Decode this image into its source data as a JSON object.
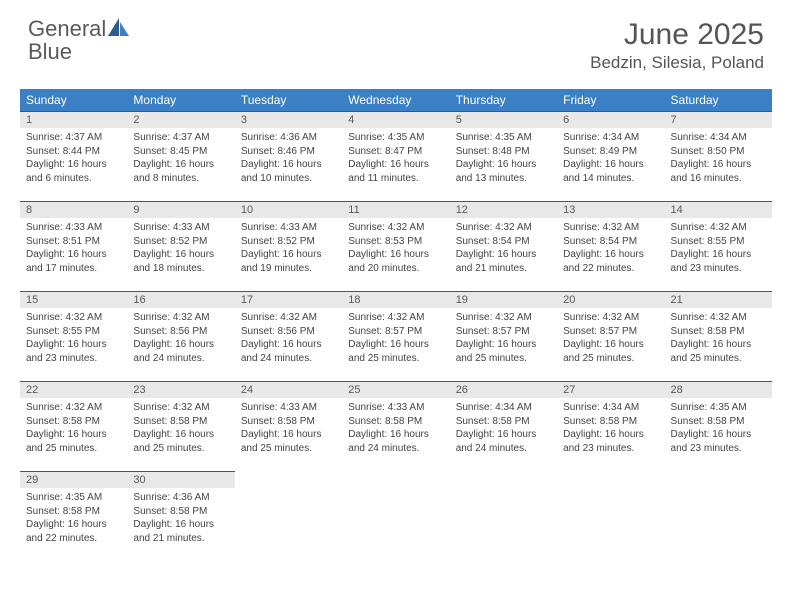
{
  "logo": {
    "text1": "General",
    "text2": "Blue"
  },
  "title": "June 2025",
  "location": "Bedzin, Silesia, Poland",
  "colors": {
    "header_bg": "#3b7fc4",
    "header_text": "#ffffff",
    "daynum_bg": "#e8e8e8",
    "daynum_text": "#5a5a5a",
    "row_border": "#2e5c8a",
    "body_text": "#444444",
    "title_text": "#555555",
    "logo_gray": "#5a5a5a",
    "logo_blue": "#3b7fc4"
  },
  "weekdays": [
    "Sunday",
    "Monday",
    "Tuesday",
    "Wednesday",
    "Thursday",
    "Friday",
    "Saturday"
  ],
  "first_weekday_index": 0,
  "days": [
    {
      "n": 1,
      "sunrise": "4:37 AM",
      "sunset": "8:44 PM",
      "daylight": "16 hours and 6 minutes."
    },
    {
      "n": 2,
      "sunrise": "4:37 AM",
      "sunset": "8:45 PM",
      "daylight": "16 hours and 8 minutes."
    },
    {
      "n": 3,
      "sunrise": "4:36 AM",
      "sunset": "8:46 PM",
      "daylight": "16 hours and 10 minutes."
    },
    {
      "n": 4,
      "sunrise": "4:35 AM",
      "sunset": "8:47 PM",
      "daylight": "16 hours and 11 minutes."
    },
    {
      "n": 5,
      "sunrise": "4:35 AM",
      "sunset": "8:48 PM",
      "daylight": "16 hours and 13 minutes."
    },
    {
      "n": 6,
      "sunrise": "4:34 AM",
      "sunset": "8:49 PM",
      "daylight": "16 hours and 14 minutes."
    },
    {
      "n": 7,
      "sunrise": "4:34 AM",
      "sunset": "8:50 PM",
      "daylight": "16 hours and 16 minutes."
    },
    {
      "n": 8,
      "sunrise": "4:33 AM",
      "sunset": "8:51 PM",
      "daylight": "16 hours and 17 minutes."
    },
    {
      "n": 9,
      "sunrise": "4:33 AM",
      "sunset": "8:52 PM",
      "daylight": "16 hours and 18 minutes."
    },
    {
      "n": 10,
      "sunrise": "4:33 AM",
      "sunset": "8:52 PM",
      "daylight": "16 hours and 19 minutes."
    },
    {
      "n": 11,
      "sunrise": "4:32 AM",
      "sunset": "8:53 PM",
      "daylight": "16 hours and 20 minutes."
    },
    {
      "n": 12,
      "sunrise": "4:32 AM",
      "sunset": "8:54 PM",
      "daylight": "16 hours and 21 minutes."
    },
    {
      "n": 13,
      "sunrise": "4:32 AM",
      "sunset": "8:54 PM",
      "daylight": "16 hours and 22 minutes."
    },
    {
      "n": 14,
      "sunrise": "4:32 AM",
      "sunset": "8:55 PM",
      "daylight": "16 hours and 23 minutes."
    },
    {
      "n": 15,
      "sunrise": "4:32 AM",
      "sunset": "8:55 PM",
      "daylight": "16 hours and 23 minutes."
    },
    {
      "n": 16,
      "sunrise": "4:32 AM",
      "sunset": "8:56 PM",
      "daylight": "16 hours and 24 minutes."
    },
    {
      "n": 17,
      "sunrise": "4:32 AM",
      "sunset": "8:56 PM",
      "daylight": "16 hours and 24 minutes."
    },
    {
      "n": 18,
      "sunrise": "4:32 AM",
      "sunset": "8:57 PM",
      "daylight": "16 hours and 25 minutes."
    },
    {
      "n": 19,
      "sunrise": "4:32 AM",
      "sunset": "8:57 PM",
      "daylight": "16 hours and 25 minutes."
    },
    {
      "n": 20,
      "sunrise": "4:32 AM",
      "sunset": "8:57 PM",
      "daylight": "16 hours and 25 minutes."
    },
    {
      "n": 21,
      "sunrise": "4:32 AM",
      "sunset": "8:58 PM",
      "daylight": "16 hours and 25 minutes."
    },
    {
      "n": 22,
      "sunrise": "4:32 AM",
      "sunset": "8:58 PM",
      "daylight": "16 hours and 25 minutes."
    },
    {
      "n": 23,
      "sunrise": "4:32 AM",
      "sunset": "8:58 PM",
      "daylight": "16 hours and 25 minutes."
    },
    {
      "n": 24,
      "sunrise": "4:33 AM",
      "sunset": "8:58 PM",
      "daylight": "16 hours and 25 minutes."
    },
    {
      "n": 25,
      "sunrise": "4:33 AM",
      "sunset": "8:58 PM",
      "daylight": "16 hours and 24 minutes."
    },
    {
      "n": 26,
      "sunrise": "4:34 AM",
      "sunset": "8:58 PM",
      "daylight": "16 hours and 24 minutes."
    },
    {
      "n": 27,
      "sunrise": "4:34 AM",
      "sunset": "8:58 PM",
      "daylight": "16 hours and 23 minutes."
    },
    {
      "n": 28,
      "sunrise": "4:35 AM",
      "sunset": "8:58 PM",
      "daylight": "16 hours and 23 minutes."
    },
    {
      "n": 29,
      "sunrise": "4:35 AM",
      "sunset": "8:58 PM",
      "daylight": "16 hours and 22 minutes."
    },
    {
      "n": 30,
      "sunrise": "4:36 AM",
      "sunset": "8:58 PM",
      "daylight": "16 hours and 21 minutes."
    }
  ],
  "labels": {
    "sunrise": "Sunrise:",
    "sunset": "Sunset:",
    "daylight": "Daylight:"
  }
}
